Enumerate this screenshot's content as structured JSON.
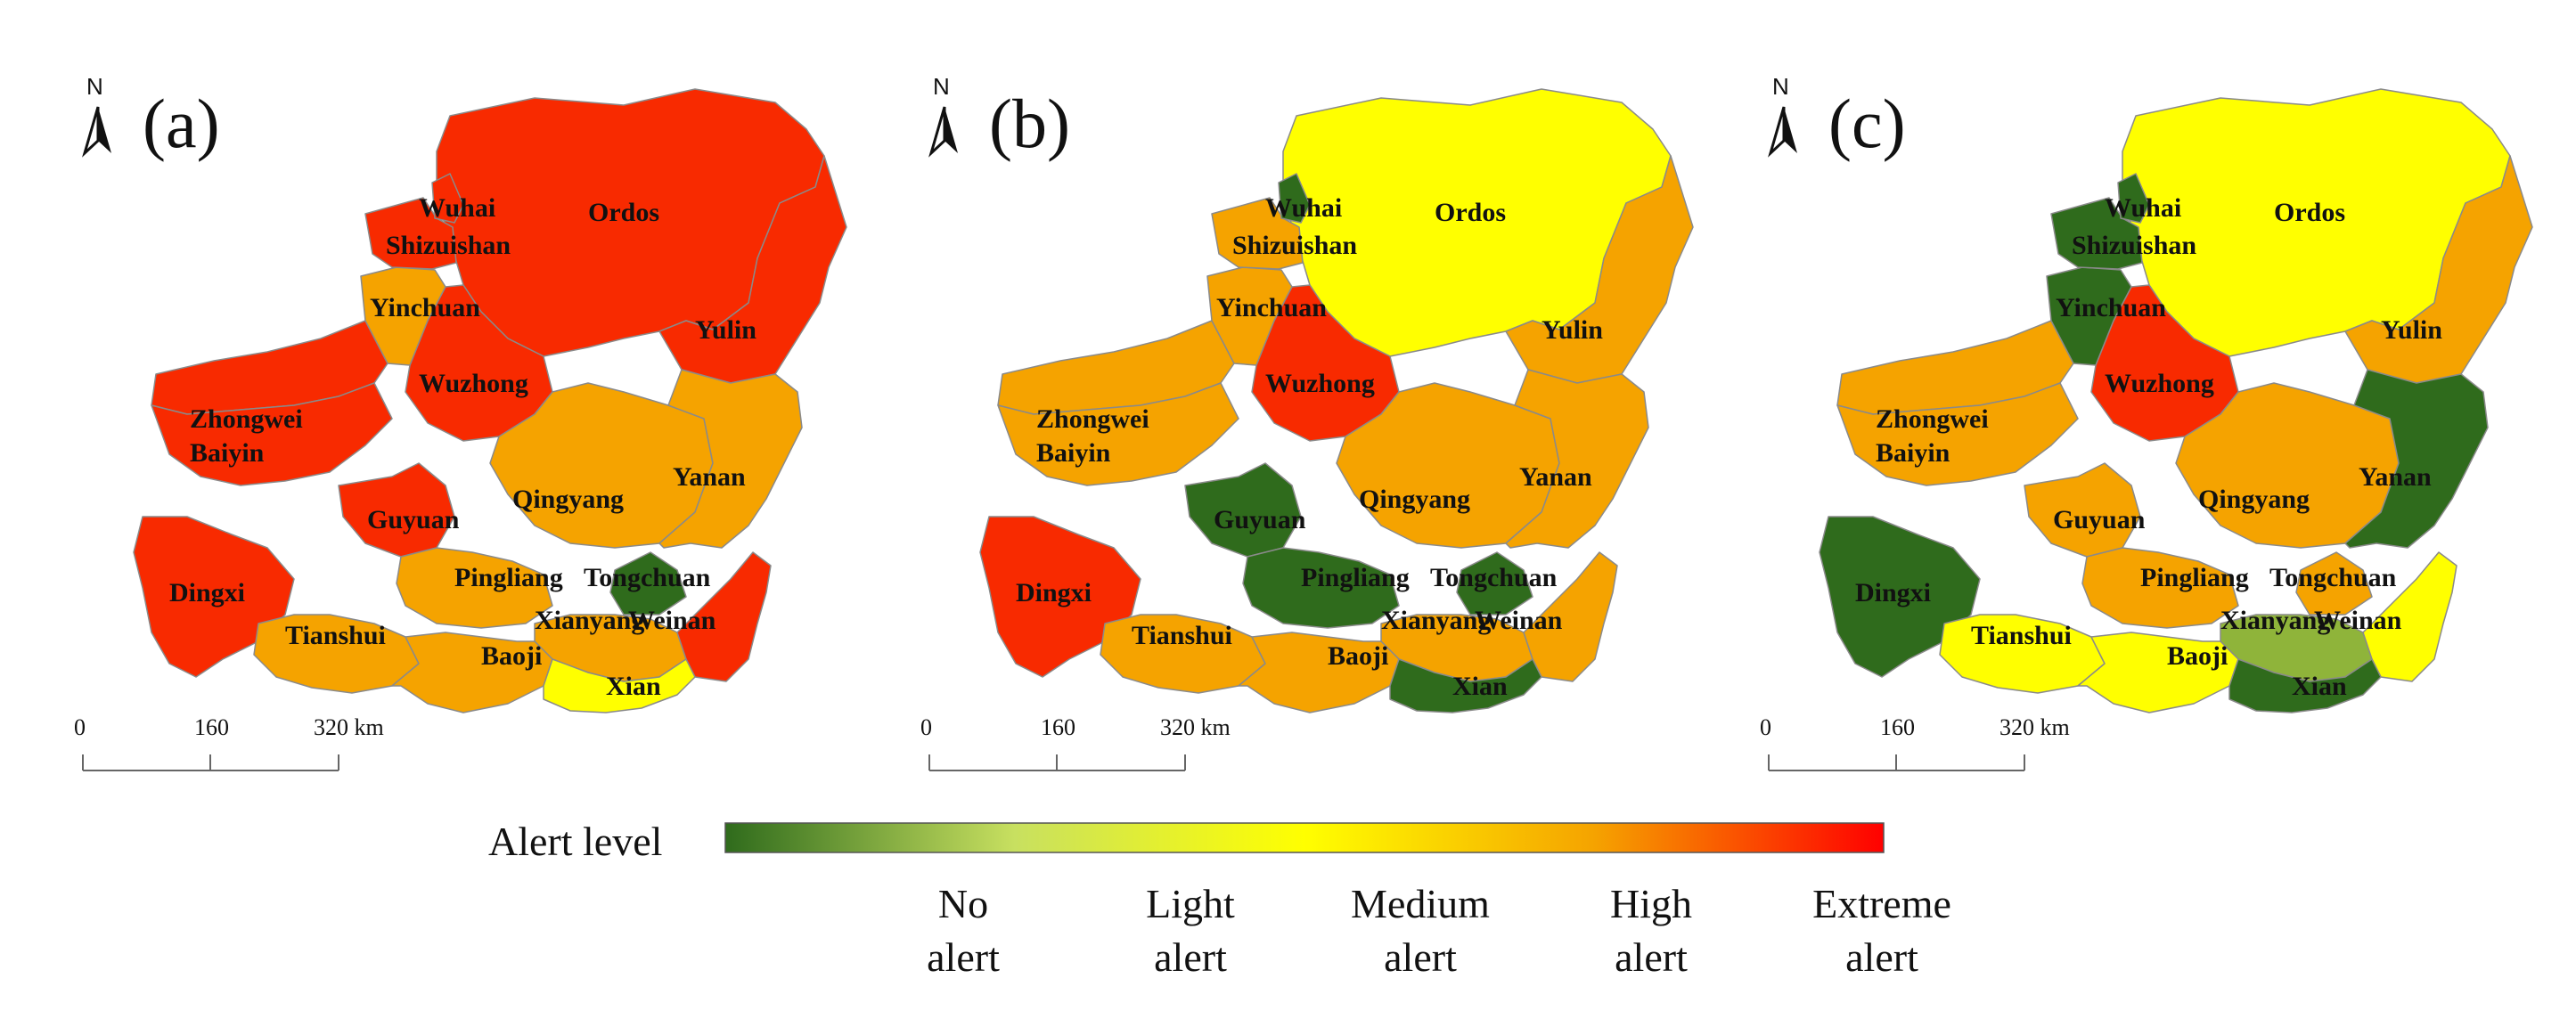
{
  "colors": {
    "no": "#2f6b1c",
    "light": "#8fb43a",
    "medium": "#ffff00",
    "high": "#f5a300",
    "extreme": "#f82a00",
    "border": "#8a8a8a"
  },
  "north_label": "N",
  "scale": {
    "ticks": [
      "0",
      "160",
      "320 km"
    ]
  },
  "city_names": {
    "ordos": "Ordos",
    "wuhai": "Wuhai",
    "shizuishan": "Shizuishan",
    "yinchuan": "Yinchuan",
    "yulin": "Yulin",
    "wuzhong": "Wuzhong",
    "zhongwei": "Zhongwei",
    "baiyin": "Baiyin",
    "qingyang": "Qingyang",
    "yanan": "Yanan",
    "guyuan": "Guyuan",
    "dingxi": "Dingxi",
    "pingliang": "Pingliang",
    "tongchuan": "Tongchuan",
    "tianshui": "Tianshui",
    "xianyang": "Xianyang",
    "weinan": "Weinan",
    "baoji": "Baoji",
    "xian": "Xian"
  },
  "panels": [
    {
      "label": "(a)",
      "alerts": {
        "ordos": "extreme",
        "wuhai": "extreme",
        "shizuishan": "extreme",
        "yinchuan": "high",
        "yulin": "extreme",
        "wuzhong": "extreme",
        "zhongwei": "extreme",
        "baiyin": "extreme",
        "qingyang": "high",
        "yanan": "high",
        "guyuan": "extreme",
        "dingxi": "extreme",
        "pingliang": "high",
        "tongchuan": "no",
        "tianshui": "high",
        "xianyang": "high",
        "weinan": "extreme",
        "baoji": "high",
        "xian": "medium"
      }
    },
    {
      "label": "(b)",
      "alerts": {
        "ordos": "medium",
        "wuhai": "no",
        "shizuishan": "high",
        "yinchuan": "high",
        "yulin": "high",
        "wuzhong": "extreme",
        "zhongwei": "high",
        "baiyin": "high",
        "qingyang": "high",
        "yanan": "high",
        "guyuan": "no",
        "dingxi": "extreme",
        "pingliang": "no",
        "tongchuan": "no",
        "tianshui": "high",
        "xianyang": "high",
        "weinan": "high",
        "baoji": "high",
        "xian": "no"
      }
    },
    {
      "label": "(c)",
      "alerts": {
        "ordos": "medium",
        "wuhai": "no",
        "shizuishan": "no",
        "yinchuan": "no",
        "yulin": "high",
        "wuzhong": "extreme",
        "zhongwei": "high",
        "baiyin": "high",
        "qingyang": "high",
        "yanan": "no",
        "guyuan": "high",
        "dingxi": "no",
        "pingliang": "high",
        "tongchuan": "high",
        "tianshui": "medium",
        "xianyang": "light",
        "weinan": "medium",
        "baoji": "medium",
        "xian": "no"
      }
    }
  ],
  "legend": {
    "title": "Alert level",
    "gradient": [
      "#2f6b1c",
      "#c8e060",
      "#ffff00",
      "#f5a300",
      "#ff0000"
    ],
    "levels": [
      {
        "line1": "No",
        "line2": "alert"
      },
      {
        "line1": "Light",
        "line2": "alert"
      },
      {
        "line1": "Medium",
        "line2": "alert"
      },
      {
        "line1": "High",
        "line2": "alert"
      },
      {
        "line1": "Extreme",
        "line2": "alert"
      }
    ]
  }
}
